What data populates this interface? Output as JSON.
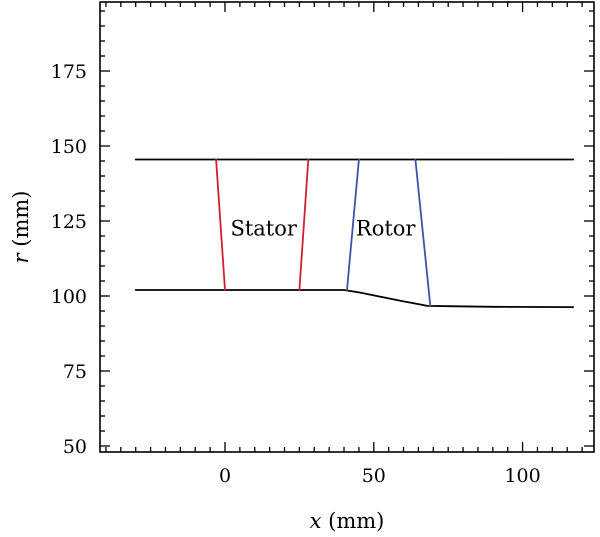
{
  "chart_data": {
    "type": "line",
    "title": "",
    "xlabel": "x (mm)",
    "xlabel_var": "x",
    "xlabel_unit": " (mm)",
    "ylabel": "r (mm)",
    "ylabel_var": "r",
    "ylabel_unit": " (mm)",
    "xlim": [
      -42,
      124
    ],
    "ylim": [
      48,
      198
    ],
    "xticks": [
      0,
      50,
      100
    ],
    "yticks": [
      50,
      75,
      100,
      125,
      150,
      175
    ],
    "grid": false,
    "series": [
      {
        "key": "casing",
        "color": "#000000",
        "points": [
          [
            -30,
            145.5
          ],
          [
            117,
            145.5
          ]
        ]
      },
      {
        "key": "hub",
        "color": "#000000",
        "points": [
          [
            -30,
            102
          ],
          [
            40,
            102
          ],
          [
            45,
            101.2
          ],
          [
            50,
            100.2
          ],
          [
            55,
            99.2
          ],
          [
            60,
            98.2
          ],
          [
            65,
            97.3
          ],
          [
            68,
            96.7
          ],
          [
            75,
            96.6
          ],
          [
            90,
            96.4
          ],
          [
            117,
            96.3
          ]
        ]
      },
      {
        "key": "stator_le",
        "color": "#d0202a",
        "points": [
          [
            -3,
            145.5
          ],
          [
            0,
            102
          ]
        ]
      },
      {
        "key": "stator_te",
        "color": "#d0202a",
        "points": [
          [
            28,
            145.5
          ],
          [
            25,
            102
          ]
        ]
      },
      {
        "key": "rotor_le",
        "color": "#3b55a8",
        "points": [
          [
            45,
            145.5
          ],
          [
            41,
            102
          ]
        ]
      },
      {
        "key": "rotor_te",
        "color": "#3b55a8",
        "points": [
          [
            64,
            145.5
          ],
          [
            69,
            96.7
          ]
        ]
      }
    ],
    "annotations": [
      {
        "text": "Stator",
        "x": 13,
        "y": 122.5
      },
      {
        "text": "Rotor",
        "x": 54,
        "y": 122.5
      }
    ]
  }
}
